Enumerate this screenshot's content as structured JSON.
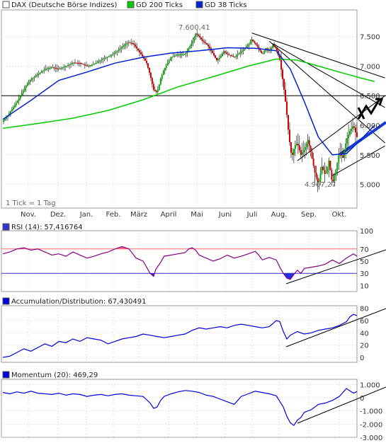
{
  "colors": {
    "up_candle": "#00aa00",
    "down_candle": "#cc0000",
    "gd200": "#00cc00",
    "gd38": "#0022cc",
    "rsi_line": "#880088",
    "rsi_70_line": "#ff6666",
    "rsi_30_line": "#3333cc",
    "rsi_over_fill": "#ff6688",
    "rsi_under_fill": "#2233dd",
    "accdist_line": "#0000dd",
    "momentum_line": "#0000dd",
    "trendline": "#000000"
  },
  "chart_data": [
    {
      "type": "candlestick",
      "legend": [
        {
          "name": "DAX (Deutsche Börse Indizes)",
          "color": "#ffffff"
        },
        {
          "name": "GD 200 Ticks",
          "color": "#00cc00"
        },
        {
          "name": "GD 38 Ticks",
          "color": "#0022cc"
        }
      ],
      "note": "1 Tick = 1 Tag",
      "x_labels": [
        "Nov.",
        "Dez.",
        "Jan.",
        "Feb.",
        "März",
        "April",
        "Mai",
        "Juni",
        "Juli",
        "Aug.",
        "Sep.",
        "Okt."
      ],
      "y_ticks": [
        "7.500",
        "7.000",
        "6.500",
        "6.000",
        "5.500",
        "5.000"
      ],
      "ylim": [
        4600,
        7950
      ],
      "annotations": [
        {
          "label": "7.600,41",
          "value": 7600.41
        },
        {
          "label": "4.967,27",
          "value": 4967.27
        }
      ],
      "horizontal_line": 6500,
      "close_points": [
        [
          0,
          6070
        ],
        [
          8,
          6180
        ],
        [
          16,
          6320
        ],
        [
          24,
          6470
        ],
        [
          32,
          6650
        ],
        [
          40,
          6780
        ],
        [
          50,
          6860
        ],
        [
          60,
          6950
        ],
        [
          70,
          6980
        ],
        [
          80,
          6950
        ],
        [
          90,
          7000
        ],
        [
          100,
          7060
        ],
        [
          110,
          7050
        ],
        [
          120,
          7000
        ],
        [
          130,
          7030
        ],
        [
          140,
          7110
        ],
        [
          150,
          7160
        ],
        [
          160,
          7230
        ],
        [
          170,
          7320
        ],
        [
          178,
          7400
        ],
        [
          186,
          7380
        ],
        [
          194,
          7250
        ],
        [
          200,
          7150
        ],
        [
          205,
          7050
        ],
        [
          210,
          6850
        ],
        [
          215,
          6600
        ],
        [
          220,
          6550
        ],
        [
          225,
          6780
        ],
        [
          230,
          6950
        ],
        [
          240,
          7150
        ],
        [
          250,
          7200
        ],
        [
          260,
          7200
        ],
        [
          265,
          7300
        ],
        [
          270,
          7400
        ],
        [
          275,
          7550
        ],
        [
          280,
          7500
        ],
        [
          285,
          7420
        ],
        [
          290,
          7380
        ],
        [
          295,
          7300
        ],
        [
          300,
          7200
        ],
        [
          305,
          7100
        ],
        [
          310,
          7150
        ],
        [
          315,
          7250
        ],
        [
          320,
          7200
        ],
        [
          330,
          7150
        ],
        [
          340,
          7250
        ],
        [
          350,
          7350
        ],
        [
          355,
          7450
        ],
        [
          360,
          7380
        ],
        [
          365,
          7300
        ],
        [
          370,
          7200
        ],
        [
          375,
          7300
        ],
        [
          380,
          7250
        ],
        [
          385,
          7350
        ],
        [
          390,
          7300
        ],
        [
          395,
          7100
        ],
        [
          400,
          6700
        ],
        [
          404,
          6300
        ],
        [
          408,
          5800
        ],
        [
          412,
          5450
        ],
        [
          416,
          5650
        ],
        [
          420,
          5700
        ],
        [
          425,
          5500
        ],
        [
          430,
          5600
        ],
        [
          435,
          5750
        ],
        [
          440,
          5500
        ],
        [
          445,
          5200
        ],
        [
          450,
          5000
        ],
        [
          455,
          5300
        ],
        [
          460,
          5150
        ],
        [
          465,
          5400
        ],
        [
          470,
          5000
        ],
        [
          475,
          5250
        ],
        [
          480,
          5550
        ],
        [
          485,
          5450
        ],
        [
          490,
          5750
        ],
        [
          495,
          5900
        ],
        [
          500,
          6000
        ],
        [
          505,
          5800
        ]
      ],
      "gd200_points": [
        [
          0,
          5950
        ],
        [
          50,
          6030
        ],
        [
          100,
          6120
        ],
        [
          150,
          6250
        ],
        [
          200,
          6430
        ],
        [
          250,
          6650
        ],
        [
          300,
          6820
        ],
        [
          350,
          7000
        ],
        [
          390,
          7120
        ],
        [
          420,
          7100
        ],
        [
          450,
          7000
        ],
        [
          480,
          6900
        ],
        [
          510,
          6800
        ],
        [
          530,
          6740
        ]
      ],
      "gd38_points": [
        [
          0,
          6100
        ],
        [
          40,
          6420
        ],
        [
          80,
          6760
        ],
        [
          120,
          6900
        ],
        [
          160,
          7050
        ],
        [
          200,
          7150
        ],
        [
          240,
          7220
        ],
        [
          280,
          7260
        ],
        [
          320,
          7310
        ],
        [
          360,
          7300
        ],
        [
          390,
          7260
        ],
        [
          410,
          6950
        ],
        [
          430,
          6400
        ],
        [
          450,
          5800
        ],
        [
          470,
          5500
        ],
        [
          490,
          5520
        ],
        [
          510,
          5750
        ],
        [
          530,
          6000
        ]
      ]
    },
    {
      "type": "line",
      "legend": [
        {
          "name": "RSI (14): 57,416764",
          "color": "#2233dd"
        }
      ],
      "y_ticks": [
        "100",
        "70",
        "50",
        "30",
        "10"
      ],
      "ylim": [
        0,
        100
      ],
      "levels": [
        70,
        30
      ],
      "points": [
        [
          0,
          62
        ],
        [
          10,
          65
        ],
        [
          20,
          70
        ],
        [
          30,
          72
        ],
        [
          40,
          68
        ],
        [
          50,
          70
        ],
        [
          60,
          65
        ],
        [
          70,
          60
        ],
        [
          80,
          62
        ],
        [
          90,
          58
        ],
        [
          100,
          65
        ],
        [
          110,
          60
        ],
        [
          120,
          55
        ],
        [
          130,
          58
        ],
        [
          140,
          62
        ],
        [
          150,
          65
        ],
        [
          160,
          70
        ],
        [
          170,
          74
        ],
        [
          180,
          70
        ],
        [
          190,
          55
        ],
        [
          200,
          50
        ],
        [
          205,
          40
        ],
        [
          210,
          30
        ],
        [
          215,
          25
        ],
        [
          218,
          36
        ],
        [
          225,
          48
        ],
        [
          230,
          58
        ],
        [
          240,
          60
        ],
        [
          250,
          62
        ],
        [
          260,
          64
        ],
        [
          265,
          70
        ],
        [
          270,
          72
        ],
        [
          275,
          68
        ],
        [
          280,
          60
        ],
        [
          290,
          55
        ],
        [
          300,
          50
        ],
        [
          310,
          54
        ],
        [
          320,
          60
        ],
        [
          330,
          55
        ],
        [
          340,
          58
        ],
        [
          350,
          62
        ],
        [
          360,
          66
        ],
        [
          365,
          60
        ],
        [
          370,
          52
        ],
        [
          380,
          56
        ],
        [
          390,
          52
        ],
        [
          395,
          40
        ],
        [
          400,
          30
        ],
        [
          405,
          22
        ],
        [
          410,
          20
        ],
        [
          415,
          28
        ],
        [
          420,
          35
        ],
        [
          425,
          30
        ],
        [
          430,
          38
        ],
        [
          440,
          40
        ],
        [
          450,
          42
        ],
        [
          460,
          45
        ],
        [
          470,
          52
        ],
        [
          480,
          46
        ],
        [
          490,
          55
        ],
        [
          500,
          62
        ],
        [
          505,
          58
        ]
      ]
    },
    {
      "type": "line",
      "legend": [
        {
          "name": "Accumulation/Distribution: 67,430491",
          "color": "#2233dd"
        }
      ],
      "y_ticks": [
        "80",
        "60",
        "40",
        "20",
        "0"
      ],
      "ylim": [
        -8,
        84
      ],
      "points": [
        [
          0,
          0
        ],
        [
          10,
          2
        ],
        [
          20,
          8
        ],
        [
          30,
          14
        ],
        [
          40,
          10
        ],
        [
          50,
          16
        ],
        [
          60,
          22
        ],
        [
          70,
          18
        ],
        [
          80,
          26
        ],
        [
          90,
          24
        ],
        [
          100,
          30
        ],
        [
          110,
          26
        ],
        [
          120,
          32
        ],
        [
          130,
          30
        ],
        [
          140,
          28
        ],
        [
          150,
          22
        ],
        [
          160,
          26
        ],
        [
          170,
          30
        ],
        [
          180,
          32
        ],
        [
          190,
          34
        ],
        [
          200,
          38
        ],
        [
          210,
          36
        ],
        [
          220,
          34
        ],
        [
          230,
          32
        ],
        [
          240,
          34
        ],
        [
          250,
          36
        ],
        [
          260,
          38
        ],
        [
          270,
          44
        ],
        [
          280,
          48
        ],
        [
          290,
          46
        ],
        [
          300,
          48
        ],
        [
          310,
          50
        ],
        [
          320,
          48
        ],
        [
          330,
          52
        ],
        [
          340,
          54
        ],
        [
          350,
          52
        ],
        [
          360,
          50
        ],
        [
          370,
          48
        ],
        [
          380,
          50
        ],
        [
          390,
          60
        ],
        [
          395,
          58
        ],
        [
          400,
          42
        ],
        [
          405,
          30
        ],
        [
          410,
          36
        ],
        [
          420,
          42
        ],
        [
          430,
          38
        ],
        [
          440,
          40
        ],
        [
          450,
          44
        ],
        [
          460,
          46
        ],
        [
          470,
          48
        ],
        [
          480,
          52
        ],
        [
          490,
          58
        ],
        [
          495,
          66
        ],
        [
          500,
          70
        ],
        [
          505,
          68
        ]
      ]
    },
    {
      "type": "line",
      "legend": [
        {
          "name": "Momentum (20): 469,29",
          "color": "#2233dd"
        }
      ],
      "y_ticks": [
        "1.000",
        "0",
        "-1.000",
        "-2.000",
        "-3.000"
      ],
      "ylim": [
        -3000,
        1400
      ],
      "points": [
        [
          0,
          400
        ],
        [
          10,
          300
        ],
        [
          20,
          450
        ],
        [
          30,
          350
        ],
        [
          40,
          500
        ],
        [
          50,
          350
        ],
        [
          60,
          300
        ],
        [
          70,
          250
        ],
        [
          80,
          350
        ],
        [
          90,
          200
        ],
        [
          100,
          300
        ],
        [
          110,
          250
        ],
        [
          120,
          100
        ],
        [
          130,
          200
        ],
        [
          140,
          250
        ],
        [
          150,
          150
        ],
        [
          160,
          250
        ],
        [
          170,
          300
        ],
        [
          180,
          200
        ],
        [
          190,
          150
        ],
        [
          200,
          100
        ],
        [
          210,
          -400
        ],
        [
          215,
          -800
        ],
        [
          220,
          -700
        ],
        [
          225,
          -200
        ],
        [
          230,
          100
        ],
        [
          240,
          300
        ],
        [
          250,
          450
        ],
        [
          260,
          550
        ],
        [
          270,
          500
        ],
        [
          280,
          400
        ],
        [
          290,
          200
        ],
        [
          300,
          100
        ],
        [
          310,
          -100
        ],
        [
          320,
          -300
        ],
        [
          330,
          -500
        ],
        [
          340,
          100
        ],
        [
          350,
          300
        ],
        [
          360,
          500
        ],
        [
          370,
          400
        ],
        [
          380,
          300
        ],
        [
          390,
          150
        ],
        [
          400,
          -700
        ],
        [
          405,
          -1400
        ],
        [
          410,
          -1900
        ],
        [
          415,
          -2100
        ],
        [
          420,
          -1700
        ],
        [
          425,
          -1500
        ],
        [
          430,
          -1100
        ],
        [
          440,
          -900
        ],
        [
          450,
          -500
        ],
        [
          460,
          -400
        ],
        [
          470,
          -200
        ],
        [
          480,
          100
        ],
        [
          490,
          700
        ],
        [
          500,
          350
        ],
        [
          505,
          470
        ]
      ]
    }
  ]
}
